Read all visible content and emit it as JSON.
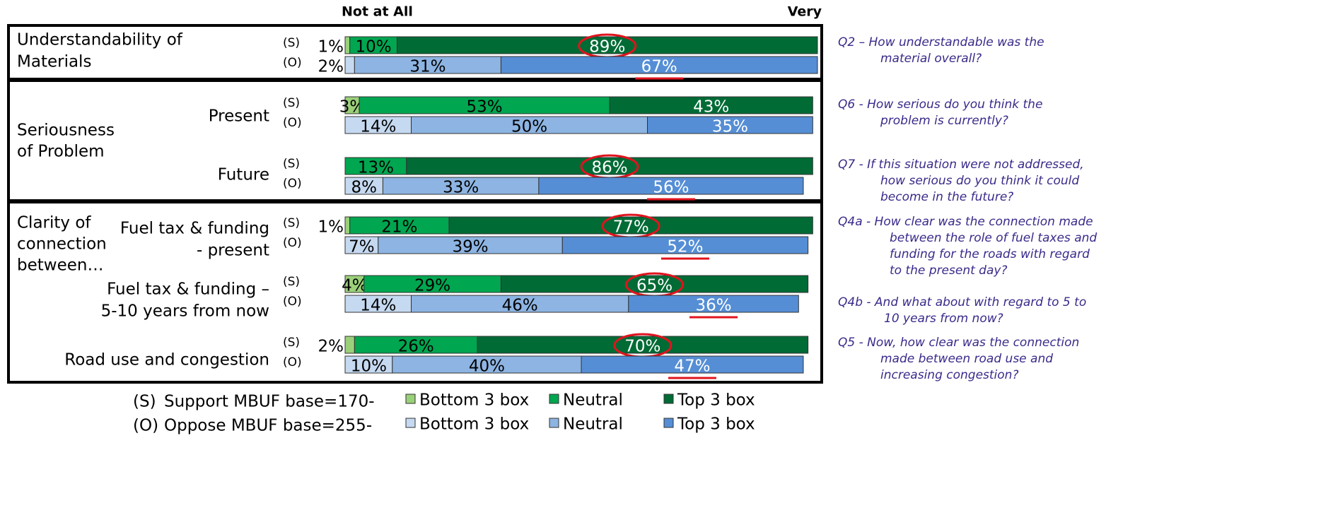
{
  "chart_data": {
    "type": "stacked-bar",
    "orientation": "horizontal",
    "header_left": "Not at All",
    "header_right": "Very",
    "xlim": [
      0,
      100
    ],
    "row_tags": [
      "(S)",
      "(O)"
    ],
    "groups": [
      {
        "label": [],
        "rows": [
          0
        ]
      },
      {
        "label": [
          "Seriousness",
          "of Problem"
        ],
        "rows": [
          1,
          2
        ]
      },
      {
        "label": [
          "Clarity of",
          "connection",
          "between…"
        ],
        "rows": [
          3,
          4,
          5
        ]
      }
    ],
    "categories": [
      [
        "Understandability of",
        "Materials"
      ],
      [
        "Present"
      ],
      [
        "Future"
      ],
      [
        "Fuel tax & funding",
        "- present"
      ],
      [
        "Fuel tax & funding –",
        "5-10 years from now"
      ],
      [
        "Road use and congestion"
      ]
    ],
    "highlight": [
      true,
      false,
      true,
      true,
      true,
      true
    ],
    "series": [
      {
        "name": "Bottom 3 box",
        "group": "(S)",
        "color": "#9bd07a",
        "label_color": "#000000",
        "values": [
          1,
          3,
          null,
          1,
          4,
          2
        ]
      },
      {
        "name": "Neutral",
        "group": "(S)",
        "color": "#00a650",
        "label_color": "#000000",
        "values": [
          10,
          53,
          13,
          21,
          29,
          26
        ]
      },
      {
        "name": "Top 3 box",
        "group": "(S)",
        "color": "#006b35",
        "label_color": "#ffffff",
        "values": [
          89,
          43,
          86,
          77,
          65,
          70
        ]
      },
      {
        "name": "Bottom 3 box",
        "group": "(O)",
        "color": "#c5d9f0",
        "label_color": "#000000",
        "values": [
          2,
          14,
          8,
          7,
          14,
          10
        ]
      },
      {
        "name": "Neutral",
        "group": "(O)",
        "color": "#8db4e2",
        "label_color": "#000000",
        "values": [
          31,
          50,
          33,
          39,
          46,
          40
        ]
      },
      {
        "name": "Top 3 box",
        "group": "(O)",
        "color": "#558ed5",
        "label_color": "#ffffff",
        "values": [
          67,
          35,
          56,
          52,
          36,
          47
        ]
      }
    ],
    "value_labels": [
      [
        "1%",
        "3%",
        null,
        "1%",
        "4%",
        "2%"
      ],
      [
        "10%",
        "53%",
        "13%",
        "21%",
        "29%",
        "26%"
      ],
      [
        "89%",
        "43%",
        "86%",
        "77%",
        "65%",
        "70%"
      ],
      [
        "2%",
        "14%",
        "8%",
        "7%",
        "14%",
        "10%"
      ],
      [
        "31%",
        "50%",
        "33%",
        "39%",
        "46%",
        "40%"
      ],
      [
        "67%",
        "35%",
        "56%",
        "52%",
        "36%",
        "47%"
      ]
    ],
    "legend_rows": [
      "Support MBUF base=170-",
      "Oppose MBUF base=255-"
    ],
    "questions": [
      [
        "Q2 – How understandable was the",
        "material overall?"
      ],
      [
        "Q6 - How serious do you think the",
        "problem is currently?"
      ],
      [
        "Q7 - If this situation were not addressed,",
        "how serious do you think it could",
        "become in the future?"
      ],
      [
        "Q4a - How clear was the connection made",
        "between the role of fuel taxes and",
        "funding for the roads with regard",
        "to the present day?"
      ],
      [
        "Q4b - And what about with regard to 5 to",
        "10 years from now?"
      ],
      [
        "Q5 - Now, how clear was the connection",
        "made between road use and",
        "increasing congestion?"
      ]
    ]
  }
}
